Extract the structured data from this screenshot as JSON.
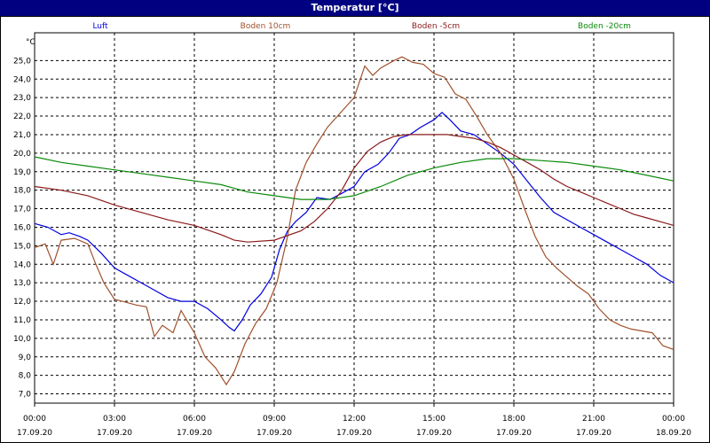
{
  "window": {
    "title": "Temperatur [°C]"
  },
  "chart_data": {
    "type": "line",
    "unit_label": "°C",
    "title": "Temperatur [°C]",
    "xlabel": "",
    "ylabel": "",
    "ylim": [
      6.5,
      26.5
    ],
    "y_ticks": [
      "7,0",
      "8,0",
      "9,0",
      "10,0",
      "11,0",
      "12,0",
      "13,0",
      "14,0",
      "15,0",
      "16,0",
      "17,0",
      "18,0",
      "19,0",
      "20,0",
      "21,0",
      "22,0",
      "23,0",
      "24,0",
      "25,0"
    ],
    "xlim": [
      0,
      24
    ],
    "x_ticks": [
      {
        "time": "00:00",
        "date": "17.09.20"
      },
      {
        "time": "03:00",
        "date": "17.09.20"
      },
      {
        "time": "06:00",
        "date": "17.09.20"
      },
      {
        "time": "09:00",
        "date": "17.09.20"
      },
      {
        "time": "12:00",
        "date": "17.09.20"
      },
      {
        "time": "15:00",
        "date": "17.09.20"
      },
      {
        "time": "18:00",
        "date": "17.09.20"
      },
      {
        "time": "21:00",
        "date": "17.09.20"
      },
      {
        "time": "00:00",
        "date": "18.09.20"
      }
    ],
    "grid": true,
    "legend_position": "top",
    "series": [
      {
        "name": "Luft",
        "color": "#0000e0",
        "points": [
          [
            0,
            16.2
          ],
          [
            0.5,
            16.0
          ],
          [
            1,
            15.6
          ],
          [
            1.3,
            15.7
          ],
          [
            1.7,
            15.5
          ],
          [
            2,
            15.3
          ],
          [
            2.5,
            14.6
          ],
          [
            3,
            13.8
          ],
          [
            3.5,
            13.4
          ],
          [
            4,
            13.0
          ],
          [
            4.5,
            12.6
          ],
          [
            5,
            12.2
          ],
          [
            5.5,
            12.0
          ],
          [
            6,
            12.0
          ],
          [
            6.5,
            11.6
          ],
          [
            7,
            11.0
          ],
          [
            7.3,
            10.6
          ],
          [
            7.5,
            10.4
          ],
          [
            7.8,
            11.0
          ],
          [
            8.1,
            11.8
          ],
          [
            8.5,
            12.4
          ],
          [
            8.9,
            13.3
          ],
          [
            9.2,
            14.8
          ],
          [
            9.5,
            15.8
          ],
          [
            9.8,
            16.3
          ],
          [
            10.2,
            16.8
          ],
          [
            10.6,
            17.6
          ],
          [
            11.1,
            17.5
          ],
          [
            11.5,
            17.8
          ],
          [
            12,
            18.2
          ],
          [
            12.4,
            19.0
          ],
          [
            12.9,
            19.4
          ],
          [
            13.3,
            20.0
          ],
          [
            13.7,
            20.8
          ],
          [
            14.1,
            21.0
          ],
          [
            14.5,
            21.4
          ],
          [
            15,
            21.8
          ],
          [
            15.3,
            22.2
          ],
          [
            15.6,
            21.8
          ],
          [
            16,
            21.2
          ],
          [
            16.5,
            21.0
          ],
          [
            17,
            20.5
          ],
          [
            17.5,
            20.0
          ],
          [
            18,
            19.4
          ],
          [
            18.5,
            18.5
          ],
          [
            19,
            17.6
          ],
          [
            19.5,
            16.8
          ],
          [
            20,
            16.4
          ],
          [
            20.5,
            16.0
          ],
          [
            21,
            15.6
          ],
          [
            21.5,
            15.2
          ],
          [
            22,
            14.8
          ],
          [
            22.5,
            14.4
          ],
          [
            23,
            14.0
          ],
          [
            23.5,
            13.4
          ],
          [
            24,
            13.0
          ]
        ]
      },
      {
        "name": "Boden 10cm",
        "color": "#a0522d",
        "points": [
          [
            0,
            14.9
          ],
          [
            0.4,
            15.1
          ],
          [
            0.7,
            14.0
          ],
          [
            1,
            15.3
          ],
          [
            1.5,
            15.4
          ],
          [
            2,
            15.1
          ],
          [
            2.3,
            14.0
          ],
          [
            2.6,
            13.0
          ],
          [
            3,
            12.1
          ],
          [
            3.3,
            12.0
          ],
          [
            3.8,
            11.8
          ],
          [
            4.2,
            11.7
          ],
          [
            4.5,
            10.1
          ],
          [
            4.8,
            10.7
          ],
          [
            5.2,
            10.3
          ],
          [
            5.5,
            11.5
          ],
          [
            6,
            10.3
          ],
          [
            6.4,
            9.0
          ],
          [
            6.8,
            8.4
          ],
          [
            7.2,
            7.5
          ],
          [
            7.5,
            8.2
          ],
          [
            7.9,
            9.7
          ],
          [
            8.3,
            10.8
          ],
          [
            8.7,
            11.6
          ],
          [
            9.1,
            13.0
          ],
          [
            9.5,
            15.5
          ],
          [
            9.8,
            18.0
          ],
          [
            10.2,
            19.5
          ],
          [
            10.6,
            20.5
          ],
          [
            11.0,
            21.4
          ],
          [
            11.5,
            22.2
          ],
          [
            12.0,
            23.0
          ],
          [
            12.4,
            24.7
          ],
          [
            12.7,
            24.2
          ],
          [
            13.0,
            24.6
          ],
          [
            13.5,
            25.0
          ],
          [
            13.8,
            25.2
          ],
          [
            14.2,
            24.9
          ],
          [
            14.6,
            24.8
          ],
          [
            15.0,
            24.3
          ],
          [
            15.4,
            24.1
          ],
          [
            15.8,
            23.2
          ],
          [
            16.2,
            22.9
          ],
          [
            16.6,
            22.0
          ],
          [
            17.0,
            21.0
          ],
          [
            17.5,
            20.0
          ],
          [
            18.0,
            18.6
          ],
          [
            18.4,
            17.0
          ],
          [
            18.8,
            15.5
          ],
          [
            19.2,
            14.4
          ],
          [
            19.6,
            13.8
          ],
          [
            20.0,
            13.3
          ],
          [
            20.4,
            12.8
          ],
          [
            20.8,
            12.4
          ],
          [
            21.2,
            11.6
          ],
          [
            21.6,
            11.0
          ],
          [
            22.0,
            10.7
          ],
          [
            22.4,
            10.5
          ],
          [
            22.8,
            10.4
          ],
          [
            23.2,
            10.3
          ],
          [
            23.6,
            9.6
          ],
          [
            24,
            9.4
          ]
        ]
      },
      {
        "name": "Boden -5cm",
        "color": "#8b1a1a",
        "points": [
          [
            0,
            18.2
          ],
          [
            1,
            18.0
          ],
          [
            2,
            17.7
          ],
          [
            3,
            17.2
          ],
          [
            4,
            16.8
          ],
          [
            5,
            16.4
          ],
          [
            6,
            16.1
          ],
          [
            7,
            15.6
          ],
          [
            7.5,
            15.3
          ],
          [
            8,
            15.2
          ],
          [
            9,
            15.3
          ],
          [
            10,
            15.8
          ],
          [
            10.5,
            16.3
          ],
          [
            11,
            17.0
          ],
          [
            11.5,
            17.9
          ],
          [
            12,
            19.2
          ],
          [
            12.5,
            20.1
          ],
          [
            13,
            20.6
          ],
          [
            13.5,
            20.9
          ],
          [
            14,
            21.0
          ],
          [
            14.5,
            21.0
          ],
          [
            15,
            21.0
          ],
          [
            15.5,
            21.0
          ],
          [
            16,
            20.9
          ],
          [
            16.5,
            20.8
          ],
          [
            17,
            20.6
          ],
          [
            17.5,
            20.3
          ],
          [
            18,
            19.9
          ],
          [
            18.5,
            19.5
          ],
          [
            19,
            19.1
          ],
          [
            19.5,
            18.6
          ],
          [
            20,
            18.2
          ],
          [
            20.5,
            17.9
          ],
          [
            21,
            17.6
          ],
          [
            21.5,
            17.3
          ],
          [
            22,
            17.0
          ],
          [
            22.5,
            16.7
          ],
          [
            23,
            16.5
          ],
          [
            23.5,
            16.3
          ],
          [
            24,
            16.1
          ]
        ]
      },
      {
        "name": "Boden -20cm",
        "color": "#0a8a0a",
        "points": [
          [
            0,
            19.8
          ],
          [
            1,
            19.5
          ],
          [
            2,
            19.3
          ],
          [
            3,
            19.1
          ],
          [
            4,
            18.9
          ],
          [
            5,
            18.7
          ],
          [
            6,
            18.5
          ],
          [
            7,
            18.3
          ],
          [
            8,
            17.9
          ],
          [
            9,
            17.7
          ],
          [
            10,
            17.5
          ],
          [
            11,
            17.5
          ],
          [
            12,
            17.7
          ],
          [
            13,
            18.2
          ],
          [
            14,
            18.8
          ],
          [
            15,
            19.2
          ],
          [
            16,
            19.5
          ],
          [
            17,
            19.7
          ],
          [
            18,
            19.7
          ],
          [
            19,
            19.6
          ],
          [
            20,
            19.5
          ],
          [
            21,
            19.3
          ],
          [
            22,
            19.1
          ],
          [
            23,
            18.8
          ],
          [
            24,
            18.5
          ]
        ]
      }
    ]
  }
}
